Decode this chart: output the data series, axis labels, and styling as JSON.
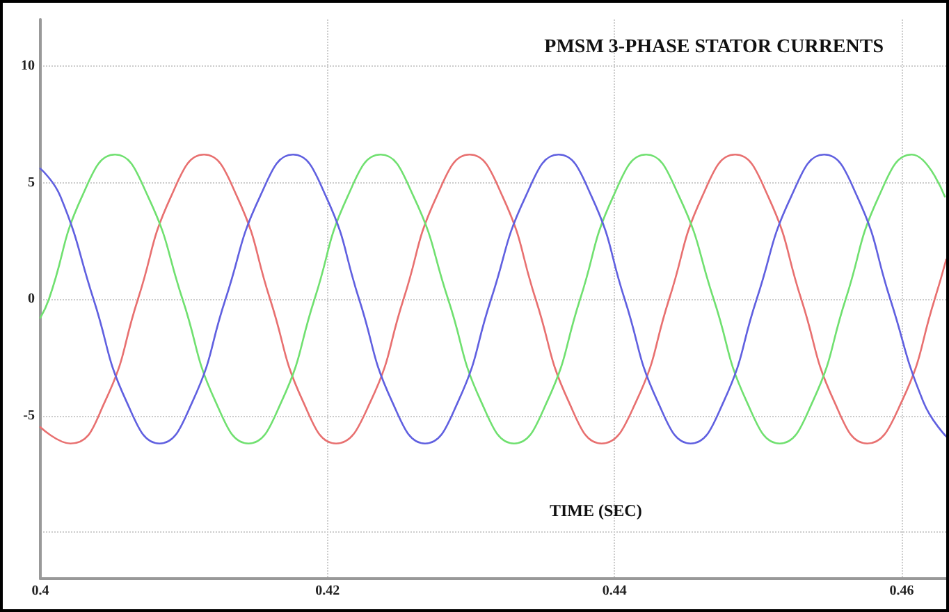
{
  "chart_data": {
    "type": "line",
    "title": "PMSM 3-PHASE STATOR CURRENTS",
    "xlabel": "TIME (SEC)",
    "xlim": [
      0.4,
      0.4631
    ],
    "xticks": [
      0.4,
      0.42,
      0.44,
      0.46
    ],
    "ylim": [
      -12,
      12
    ],
    "yticks": [
      {
        "value": -10,
        "label": null
      },
      -5,
      0,
      5,
      10
    ],
    "grid": true,
    "marker": "none",
    "line_style": "solid",
    "series": [
      {
        "color": "#e87070",
        "x": [
          0.4,
          0.4021,
          0.4045,
          0.4068,
          0.4091,
          0.4114,
          0.4137,
          0.416,
          0.4183,
          0.4206,
          0.423,
          0.4253,
          0.4276,
          0.4299,
          0.4322,
          0.4345,
          0.4368,
          0.4391,
          0.4415,
          0.4438,
          0.4461,
          0.4484,
          0.4507,
          0.453,
          0.4553,
          0.4576,
          0.46,
          0.4623,
          0.4631
        ],
        "values": [
          -5.5,
          -6.2,
          -4.4,
          0,
          4.4,
          6.2,
          4.4,
          0,
          -4.4,
          -6.2,
          -4.4,
          0,
          4.4,
          6.2,
          4.4,
          0,
          -4.4,
          -6.2,
          -4.4,
          0,
          4.4,
          6.2,
          4.4,
          0,
          -4.4,
          -6.2,
          -4.4,
          0,
          1.7
        ]
      },
      {
        "color": "#70e070",
        "x": [
          0.4,
          0.4006,
          0.4029,
          0.4052,
          0.4075,
          0.4099,
          0.4122,
          0.4145,
          0.4168,
          0.4191,
          0.4214,
          0.4237,
          0.426,
          0.4284,
          0.4307,
          0.433,
          0.4353,
          0.4376,
          0.4399,
          0.4422,
          0.4445,
          0.4469,
          0.4492,
          0.4515,
          0.4538,
          0.4561,
          0.4584,
          0.4607,
          0.463
        ],
        "values": [
          -0.8,
          0,
          4.4,
          6.2,
          4.4,
          0,
          -4.4,
          -6.2,
          -4.4,
          0,
          4.4,
          6.2,
          4.4,
          0,
          -4.4,
          -6.2,
          -4.4,
          0,
          4.4,
          6.2,
          4.4,
          0,
          -4.4,
          -6.2,
          -4.4,
          0,
          4.4,
          6.2,
          4.4
        ]
      },
      {
        "color": "#6060e0",
        "x": [
          0.4,
          0.4014,
          0.4037,
          0.406,
          0.4083,
          0.4106,
          0.4129,
          0.4153,
          0.4176,
          0.4199,
          0.4222,
          0.4245,
          0.4268,
          0.4291,
          0.4314,
          0.4338,
          0.4361,
          0.4384,
          0.4407,
          0.443,
          0.4453,
          0.4476,
          0.4499,
          0.4523,
          0.4546,
          0.4569,
          0.4592,
          0.4615,
          0.4631
        ],
        "values": [
          5.6,
          4.4,
          0,
          -4.4,
          -6.2,
          -4.4,
          0,
          4.4,
          6.2,
          4.4,
          0,
          -4.4,
          -6.2,
          -4.4,
          0,
          4.4,
          6.2,
          4.4,
          0,
          -4.4,
          -6.2,
          -4.4,
          0,
          4.4,
          6.2,
          4.4,
          0,
          -4.4,
          -5.9
        ]
      }
    ]
  }
}
